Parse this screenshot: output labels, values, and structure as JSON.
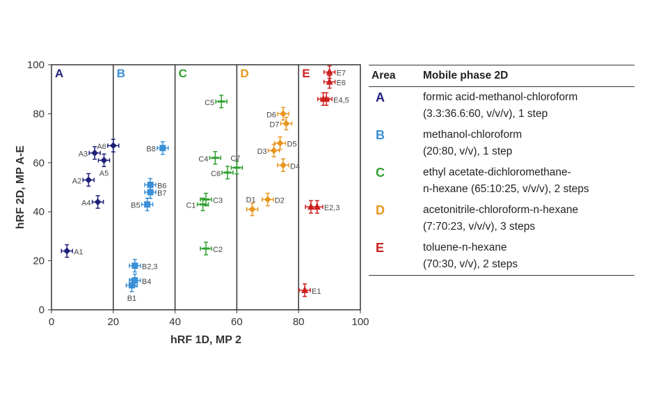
{
  "chart_data": {
    "type": "scatter",
    "xlabel": "hRF 1D, MP 2",
    "ylabel": "hRF 2D, MP A-E",
    "xlim": [
      0,
      100
    ],
    "ylim": [
      0,
      100
    ],
    "xticks": [
      "0",
      "20",
      "40",
      "60",
      "80",
      "100"
    ],
    "yticks": [
      "0",
      "20",
      "40",
      "60",
      "80",
      "100"
    ],
    "dividers": [
      20,
      40,
      60,
      80
    ],
    "error_bars": true,
    "series": [
      {
        "name": "A",
        "color": "#1f1f7a",
        "marker": "diamond",
        "points": [
          {
            "label": "A1",
            "x": 5,
            "y": 24
          },
          {
            "label": "A2",
            "x": 12,
            "y": 53
          },
          {
            "label": "A3",
            "x": 14,
            "y": 64
          },
          {
            "label": "A4",
            "x": 15,
            "y": 44
          },
          {
            "label": "A5",
            "x": 17,
            "y": 61
          },
          {
            "label": "A6",
            "x": 20,
            "y": 67
          }
        ]
      },
      {
        "name": "B",
        "color": "#3a8fd6",
        "marker": "square",
        "points": [
          {
            "label": "B1",
            "x": 26,
            "y": 10
          },
          {
            "label": "B2,3",
            "x": 27,
            "y": 18
          },
          {
            "label": "B4",
            "x": 27,
            "y": 12
          },
          {
            "label": "B5",
            "x": 31,
            "y": 43
          },
          {
            "label": "B6",
            "x": 32,
            "y": 51
          },
          {
            "label": "B7",
            "x": 32,
            "y": 48
          },
          {
            "label": "B8",
            "x": 36,
            "y": 66
          }
        ]
      },
      {
        "name": "C",
        "color": "#2ea02e",
        "marker": "dash",
        "points": [
          {
            "label": "C1",
            "x": 49,
            "y": 43
          },
          {
            "label": "C2",
            "x": 50,
            "y": 25
          },
          {
            "label": "C3",
            "x": 50,
            "y": 45
          },
          {
            "label": "C4",
            "x": 53,
            "y": 62
          },
          {
            "label": "C5",
            "x": 55,
            "y": 85
          },
          {
            "label": "C6",
            "x": 57,
            "y": 56
          },
          {
            "label": "C7",
            "x": 60,
            "y": 58
          }
        ]
      },
      {
        "name": "D",
        "color": "#e8961e",
        "marker": "diamond",
        "points": [
          {
            "label": "D1",
            "x": 65,
            "y": 41
          },
          {
            "label": "D2",
            "x": 70,
            "y": 45
          },
          {
            "label": "D3",
            "x": 72,
            "y": 65
          },
          {
            "label": "D4",
            "x": 75,
            "y": 59
          },
          {
            "label": "D5",
            "x": 74,
            "y": 68
          },
          {
            "label": "D6",
            "x": 75,
            "y": 80
          },
          {
            "label": "D7",
            "x": 76,
            "y": 76
          }
        ]
      },
      {
        "name": "E",
        "color": "#cc1f1f",
        "marker": "triangle",
        "points": [
          {
            "label": "E1",
            "x": 82,
            "y": 8
          },
          {
            "label": "",
            "x": 84,
            "y": 42
          },
          {
            "label": "E2,3",
            "x": 86,
            "y": 42
          },
          {
            "label": "",
            "x": 88,
            "y": 86
          },
          {
            "label": "E4,5",
            "x": 89,
            "y": 86
          },
          {
            "label": "E6",
            "x": 90,
            "y": 93
          },
          {
            "label": "E7",
            "x": 90,
            "y": 97
          }
        ]
      }
    ]
  },
  "table": {
    "headers": [
      "Area",
      "Mobile phase 2D"
    ],
    "rows": [
      {
        "area": "A",
        "line1": "formic acid-methanol-chloroform",
        "line2": "(3.3:36.6:60, v/v/v), 1 step"
      },
      {
        "area": "B",
        "line1": "methanol-chloroform",
        "line2": "(20:80, v/v), 1 step"
      },
      {
        "area": "C",
        "line1": "ethyl acetate-dichloromethane-",
        "line2": "n-hexane (65:10:25, v/v/v), 2 steps"
      },
      {
        "area": "D",
        "line1": "acetonitrile-chloroform-n-hexane",
        "line2": "(7:70:23, v/v/v), 3 steps"
      },
      {
        "area": "E",
        "line1": "toluene-n-hexane",
        "line2": "(70:30, v/v), 2 steps"
      }
    ]
  }
}
